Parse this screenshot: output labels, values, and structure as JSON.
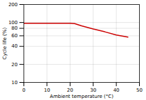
{
  "chart_data": {
    "type": "line",
    "xlabel": "Ambient temperature (°C)",
    "ylabel": "Cycle life (%)",
    "x": [
      0,
      5,
      10,
      15,
      20,
      22,
      25,
      30,
      35,
      40,
      45
    ],
    "values": [
      97,
      97,
      97,
      97,
      97,
      96,
      88,
      78,
      70,
      62,
      57
    ],
    "color": "#cc0000",
    "xlim": [
      0,
      50
    ],
    "ylim": [
      10,
      200
    ],
    "xticks": [
      0,
      10,
      20,
      30,
      40,
      50
    ],
    "yticks": [
      10,
      20,
      40,
      60,
      80,
      100,
      200
    ],
    "log": "y",
    "grid": true
  }
}
